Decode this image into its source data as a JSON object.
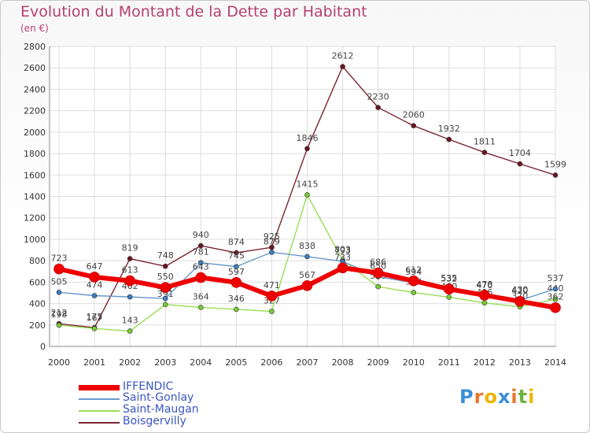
{
  "title": "Evolution du Montant de la Dette par Habitant",
  "unit_label": "(en €)",
  "logo_text": "Proxiti",
  "chart_data": {
    "type": "line",
    "title": "Evolution du Montant de la Dette par Habitant",
    "ylabel": "(en €)",
    "xlabel": "",
    "ylim": [
      0,
      2800
    ],
    "yticks": [
      0,
      200,
      400,
      600,
      800,
      1000,
      1200,
      1400,
      1600,
      1800,
      2000,
      2200,
      2400,
      2600,
      2800
    ],
    "x": [
      "2000",
      "2001",
      "2002",
      "2003",
      "2004",
      "2005",
      "2006",
      "2007",
      "2008",
      "2009",
      "2010",
      "2011",
      "2012",
      "2013",
      "2014"
    ],
    "grid": true,
    "legend_position": "bottom-left",
    "series": [
      {
        "name": "Boisgervilly",
        "color": "#7b2430",
        "marker": "#6b1520",
        "values": [
          212,
          175,
          819,
          748,
          940,
          874,
          925,
          1846,
          2612,
          2230,
          2060,
          1932,
          1811,
          1704,
          1599
        ]
      },
      {
        "name": "Saint-Maugan",
        "color": "#99dd55",
        "marker": "#77cc33",
        "values": [
          198,
          167,
          143,
          391,
          364,
          346,
          327,
          1415,
          803,
          558,
          503,
          460,
          406,
          370,
          440
        ]
      },
      {
        "name": "Saint-Gonlay",
        "color": "#6699cc",
        "marker": "#3a7ec0",
        "values": [
          505,
          474,
          462,
          447,
          781,
          745,
          879,
          838,
          793,
          650,
          594,
          532,
          470,
          430,
          537
        ]
      },
      {
        "name": "IFFENDIC",
        "color": "#ee0000",
        "marker": "#ee0000",
        "values": [
          723,
          647,
          613,
          550,
          643,
          597,
          471,
          567,
          733,
          686,
          612,
          535,
          478,
          420,
          362
        ]
      }
    ],
    "legend_order": [
      "IFFENDIC",
      "Saint-Gonlay",
      "Saint-Maugan",
      "Boisgervilly"
    ]
  }
}
